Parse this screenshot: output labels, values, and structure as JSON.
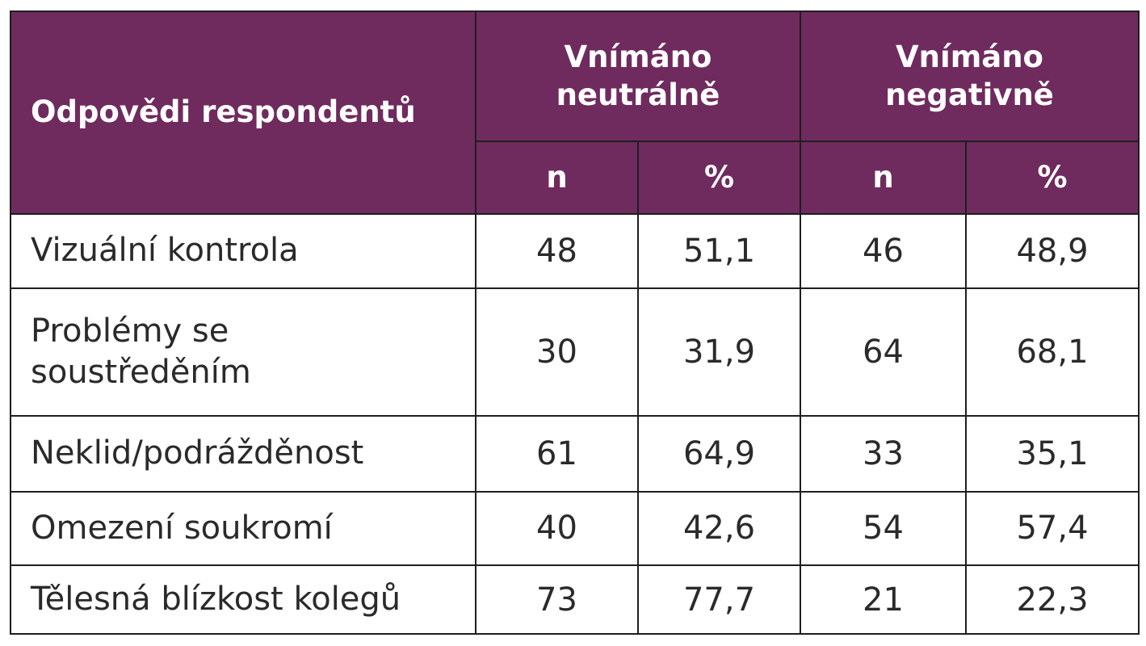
{
  "table": {
    "header": {
      "responses": "Odpovědi respondentů",
      "group_neutral": "Vnímáno neutrálně",
      "group_negative": "Vnímáno negativně",
      "col_n": "n",
      "col_pct": "%"
    },
    "rows": [
      {
        "label": "Vizuální kontrola",
        "neutral_n": "48",
        "neutral_pct": "51,1",
        "negative_n": "46",
        "negative_pct": "48,9"
      },
      {
        "label": "Problémy se soustředěním",
        "neutral_n": "30",
        "neutral_pct": "31,9",
        "negative_n": "64",
        "negative_pct": "68,1"
      },
      {
        "label": "Neklid/podrážděnost",
        "neutral_n": "61",
        "neutral_pct": "64,9",
        "negative_n": "33",
        "negative_pct": "35,1"
      },
      {
        "label": "Omezení soukromí",
        "neutral_n": "40",
        "neutral_pct": "42,6",
        "negative_n": "54",
        "negative_pct": "57,4"
      },
      {
        "label": "Tělesná blízkost kolegů",
        "neutral_n": "73",
        "neutral_pct": "77,7",
        "negative_n": "21",
        "negative_pct": "22,3"
      }
    ]
  },
  "colors": {
    "header_bg": "#6f2b5e",
    "header_text": "#ffffff",
    "border": "#1e1e1e",
    "body_text": "#2a2a2a"
  }
}
